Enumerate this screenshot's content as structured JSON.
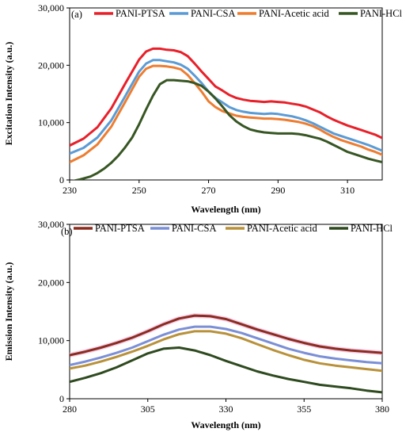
{
  "chart_data": [
    {
      "type": "line",
      "panel_label": "(a)",
      "xlabel": "Wavelength (nm)",
      "ylabel": "Excitation Intensity (a.u.)",
      "xlim": [
        230,
        320
      ],
      "ylim": [
        0,
        30000
      ],
      "xticks": [
        230,
        250,
        270,
        290,
        310
      ],
      "xtick_labels": [
        "230",
        "250",
        "270",
        "290",
        "310"
      ],
      "yticks": [
        0,
        10000,
        20000,
        30000
      ],
      "ytick_labels": [
        "0",
        "10,000",
        "20,000",
        "30,000"
      ],
      "legend_position": "top",
      "grid": false,
      "series": [
        {
          "name": "PANI-PTSA",
          "color": "#e8202a",
          "x": [
            230,
            234,
            238,
            242,
            246,
            250,
            252,
            254,
            256,
            258,
            260,
            262,
            264,
            266,
            268,
            270,
            272,
            274,
            276,
            278,
            280,
            282,
            284,
            286,
            288,
            290,
            292,
            294,
            296,
            298,
            300,
            302,
            304,
            306,
            308,
            310,
            312,
            314,
            316,
            318,
            320
          ],
          "y": [
            6000,
            7200,
            9200,
            12500,
            16800,
            21000,
            22400,
            22900,
            22900,
            22700,
            22600,
            22300,
            21600,
            20300,
            18900,
            17600,
            16300,
            15600,
            14800,
            14300,
            14000,
            13800,
            13700,
            13600,
            13700,
            13600,
            13500,
            13300,
            13100,
            12800,
            12300,
            11800,
            11100,
            10500,
            10000,
            9500,
            9100,
            8700,
            8300,
            7900,
            7300
          ]
        },
        {
          "name": "PANI-CSA",
          "color": "#5b9bd5",
          "x": [
            230,
            234,
            238,
            242,
            246,
            250,
            252,
            254,
            256,
            258,
            260,
            262,
            264,
            266,
            268,
            270,
            272,
            274,
            276,
            278,
            280,
            282,
            284,
            286,
            288,
            290,
            292,
            294,
            296,
            298,
            300,
            302,
            304,
            306,
            308,
            310,
            312,
            314,
            316,
            318,
            320
          ],
          "y": [
            4600,
            5600,
            7400,
            10400,
            14600,
            18900,
            20300,
            20900,
            20900,
            20700,
            20500,
            20100,
            19400,
            18200,
            16900,
            15400,
            14300,
            13500,
            12700,
            12200,
            11900,
            11700,
            11600,
            11500,
            11600,
            11500,
            11300,
            11100,
            10800,
            10400,
            9900,
            9300,
            8700,
            8100,
            7700,
            7300,
            6900,
            6500,
            6100,
            5600,
            5100
          ]
        },
        {
          "name": "PANI-Acetic acid",
          "color": "#ed7d31",
          "x": [
            230,
            234,
            238,
            242,
            246,
            250,
            252,
            254,
            256,
            258,
            260,
            262,
            264,
            266,
            268,
            270,
            272,
            274,
            276,
            278,
            280,
            282,
            284,
            286,
            288,
            290,
            292,
            294,
            296,
            298,
            300,
            302,
            304,
            306,
            308,
            310,
            312,
            314,
            316,
            318,
            320
          ],
          "y": [
            3100,
            4300,
            6200,
            9300,
            13600,
            18000,
            19400,
            19900,
            19900,
            19800,
            19600,
            19300,
            18300,
            16900,
            15400,
            13700,
            12700,
            12000,
            11600,
            11200,
            11000,
            10900,
            10800,
            10700,
            10700,
            10600,
            10500,
            10300,
            10100,
            9800,
            9400,
            8800,
            8100,
            7500,
            7000,
            6600,
            6200,
            5800,
            5300,
            4900,
            4400
          ]
        },
        {
          "name": "PANI-HCl",
          "color": "#375623",
          "x": [
            230,
            233,
            236,
            238,
            240,
            242,
            244,
            246,
            248,
            250,
            252,
            254,
            256,
            258,
            260,
            262,
            264,
            266,
            268,
            270,
            272,
            274,
            276,
            278,
            280,
            282,
            284,
            286,
            288,
            290,
            292,
            294,
            296,
            298,
            300,
            302,
            304,
            306,
            308,
            310,
            312,
            314,
            316,
            318,
            320
          ],
          "y": [
            -300,
            100,
            600,
            1200,
            2000,
            3000,
            4200,
            5700,
            7400,
            9700,
            12300,
            14700,
            16700,
            17400,
            17400,
            17300,
            17200,
            16900,
            16400,
            15400,
            14200,
            12800,
            11300,
            10200,
            9400,
            8800,
            8500,
            8300,
            8200,
            8100,
            8100,
            8100,
            8000,
            7800,
            7500,
            7200,
            6700,
            6100,
            5500,
            4900,
            4500,
            4100,
            3700,
            3400,
            3100
          ]
        }
      ]
    },
    {
      "type": "line",
      "panel_label": "(b)",
      "xlabel": "Wavelength (nm)",
      "ylabel": "Emission Intensity (a.u.)",
      "xlim": [
        280,
        380
      ],
      "ylim": [
        0,
        30000
      ],
      "xticks": [
        280,
        305,
        330,
        355,
        380
      ],
      "xtick_labels": [
        "280",
        "305",
        "330",
        "355",
        "380"
      ],
      "yticks": [
        0,
        10000,
        20000,
        30000
      ],
      "ytick_labels": [
        "0",
        "10,000",
        "20,000",
        "30,000"
      ],
      "legend_position": "top",
      "grid": false,
      "series": [
        {
          "name": "PANI-PTSA",
          "color": "#8b2c1e",
          "x": [
            280,
            285,
            290,
            295,
            300,
            305,
            310,
            315,
            320,
            325,
            330,
            335,
            340,
            345,
            350,
            355,
            360,
            365,
            370,
            375,
            380
          ],
          "y": [
            7500,
            8100,
            8800,
            9600,
            10500,
            11600,
            12800,
            13800,
            14300,
            14200,
            13700,
            12800,
            11900,
            11100,
            10300,
            9600,
            9000,
            8600,
            8300,
            8100,
            7900
          ]
        },
        {
          "name": "PANI-CSA",
          "color": "#7b8fd6",
          "x": [
            280,
            285,
            290,
            295,
            300,
            305,
            310,
            315,
            320,
            325,
            330,
            335,
            340,
            345,
            350,
            355,
            360,
            365,
            370,
            375,
            380
          ],
          "y": [
            5800,
            6400,
            7100,
            7900,
            8800,
            9900,
            11000,
            11900,
            12400,
            12400,
            12000,
            11300,
            10400,
            9500,
            8600,
            7900,
            7300,
            6900,
            6600,
            6300,
            6100
          ]
        },
        {
          "name": "PANI-Acetic acid",
          "color": "#b8913a",
          "x": [
            280,
            285,
            290,
            295,
            300,
            305,
            310,
            315,
            320,
            325,
            330,
            335,
            340,
            345,
            350,
            355,
            360,
            365,
            370,
            375,
            380
          ],
          "y": [
            5200,
            5700,
            6400,
            7200,
            8100,
            9100,
            10200,
            11100,
            11600,
            11600,
            11200,
            10400,
            9400,
            8400,
            7500,
            6700,
            6100,
            5700,
            5400,
            5100,
            4800
          ]
        },
        {
          "name": "PANI-HCl",
          "color": "#2e4a1e",
          "x": [
            280,
            285,
            290,
            295,
            300,
            305,
            310,
            315,
            320,
            325,
            330,
            335,
            340,
            345,
            350,
            355,
            360,
            365,
            370,
            375,
            380
          ],
          "y": [
            2900,
            3600,
            4400,
            5400,
            6600,
            7800,
            8600,
            8800,
            8300,
            7500,
            6500,
            5600,
            4700,
            4000,
            3400,
            2900,
            2400,
            2100,
            1800,
            1400,
            1100
          ]
        }
      ]
    }
  ]
}
